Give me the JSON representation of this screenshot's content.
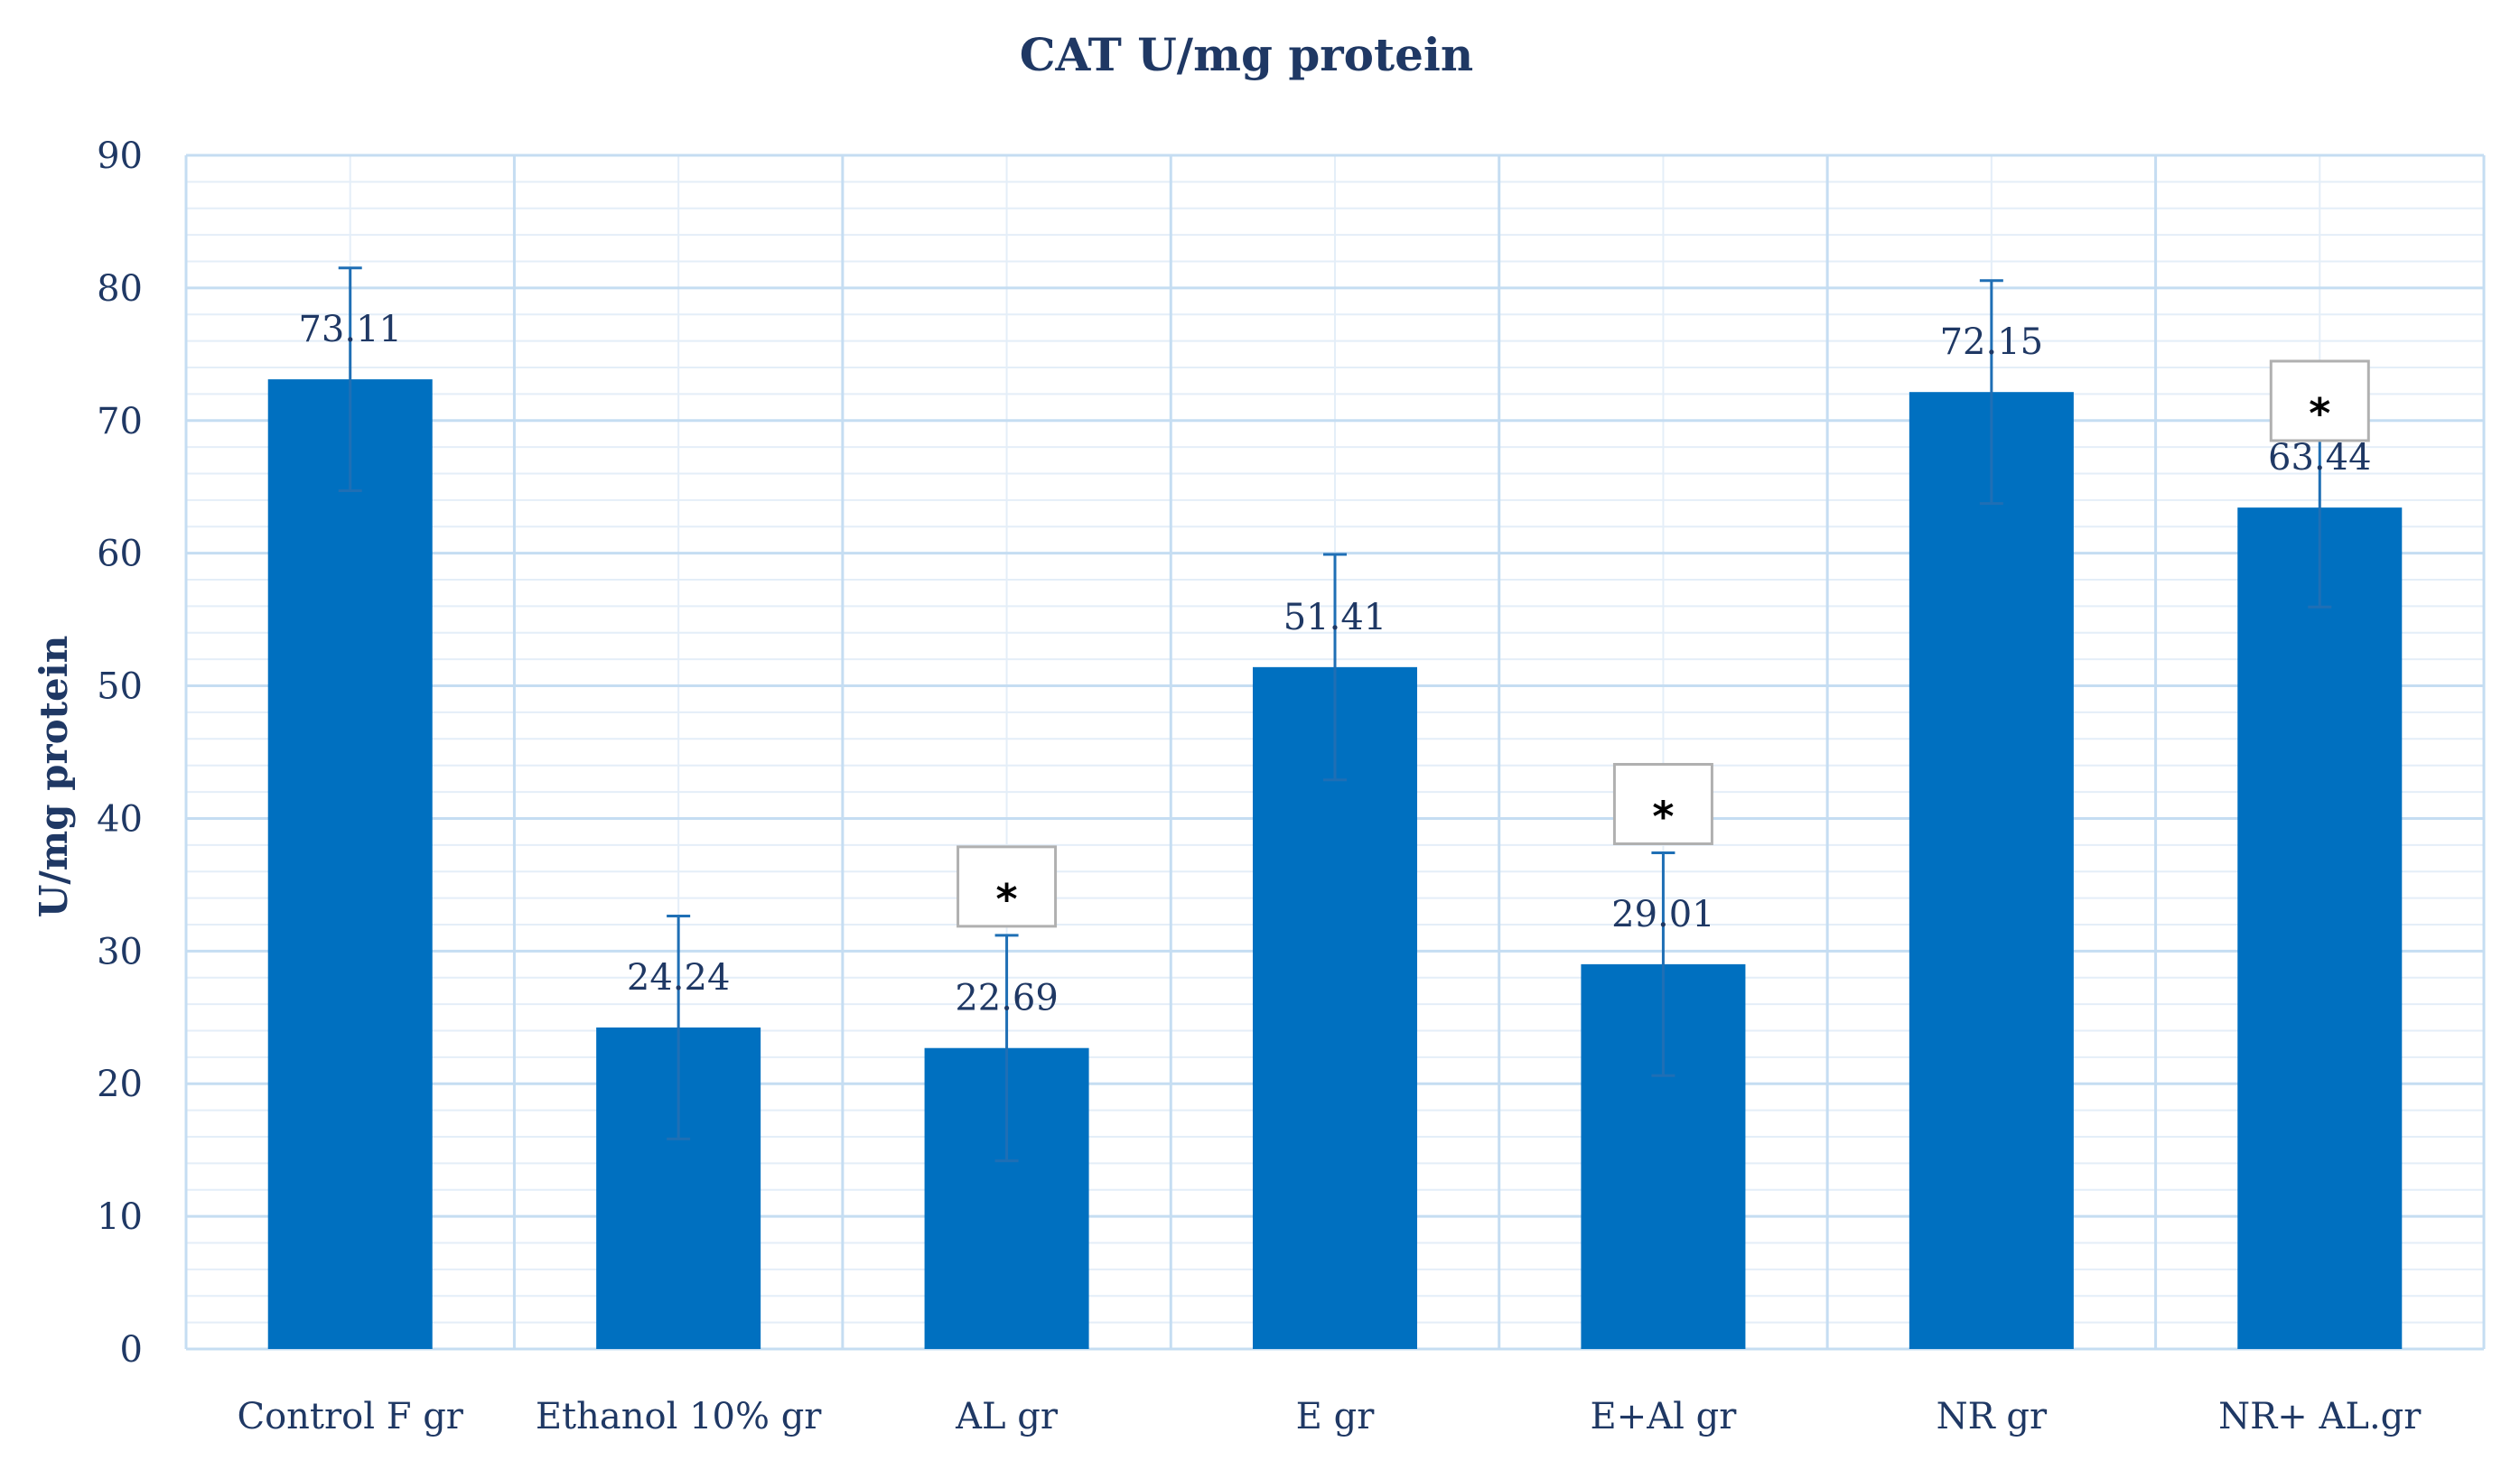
{
  "chart_data": {
    "type": "bar",
    "title": "CAT U/mg protein",
    "xlabel": "",
    "ylabel": "U/mg protein",
    "ylim": [
      0,
      90
    ],
    "yticks": [
      0,
      10,
      20,
      30,
      40,
      50,
      60,
      70,
      80,
      90
    ],
    "minor_grid_step": 2,
    "grid": true,
    "categories": [
      "Control F gr",
      "Ethanol 10% gr",
      "AL gr",
      "E gr",
      "E+Al gr",
      "NR gr",
      "NR+ AL.gr"
    ],
    "values": [
      73.11,
      24.24,
      22.69,
      51.41,
      29.01,
      72.15,
      63.44
    ],
    "value_labels": [
      "73.11",
      "24.24",
      "22.69",
      "51.41",
      "29.01",
      "72.15",
      "63.44"
    ],
    "error_bars": [
      8.4,
      8.4,
      8.5,
      8.5,
      8.4,
      8.4,
      7.5
    ],
    "significance": [
      {
        "category": "AL gr",
        "marker": "*"
      },
      {
        "category": "E+Al gr",
        "marker": "*"
      },
      {
        "category": "NR+ AL.gr",
        "marker": "*"
      }
    ],
    "colors": {
      "bar": "#0070C0",
      "error_bar": "#1F6FB5",
      "major_grid": "#C5DDF2",
      "minor_grid": "#E4EEF8",
      "axis_text": "#1F3864",
      "sig_box_border": "#B0B0B0"
    }
  }
}
